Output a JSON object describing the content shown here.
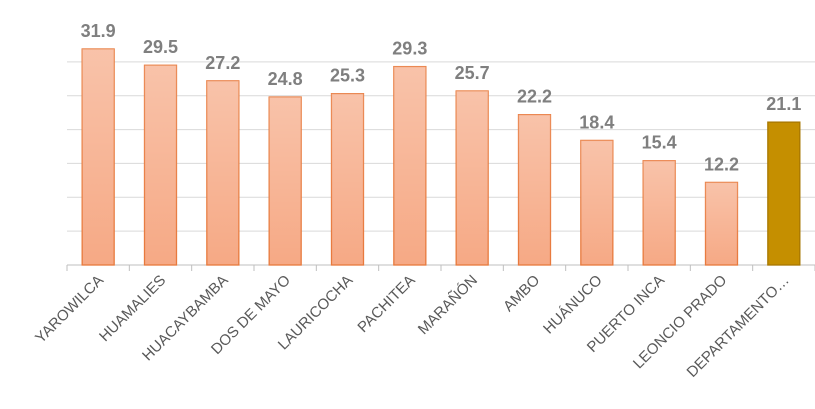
{
  "chart_data": {
    "type": "bar",
    "categories": [
      "YAROWILCA",
      "HUAMALIES",
      "HUACAYBAMBA",
      "DOS DE MAYO",
      "LAURICOCHA",
      "PACHITEA",
      "MARAÑÓN",
      "AMBO",
      "HUÁNUCO",
      "PUERTO INCA",
      "LEONCIO PRADO",
      "DEPARTAMENTO…"
    ],
    "values": [
      31.9,
      29.5,
      27.2,
      24.8,
      25.3,
      29.3,
      25.7,
      22.2,
      18.4,
      15.4,
      12.2,
      21.1
    ],
    "colors": [
      "#f6a985",
      "#f6a985",
      "#f6a985",
      "#f6a985",
      "#f6a985",
      "#f6a985",
      "#f6a985",
      "#f6a985",
      "#f6a985",
      "#f6a985",
      "#f6a985",
      "#c58f00"
    ],
    "ylim": [
      0,
      35
    ],
    "yticks": [
      0,
      5,
      10,
      15,
      20,
      25,
      30
    ],
    "grid": true
  }
}
